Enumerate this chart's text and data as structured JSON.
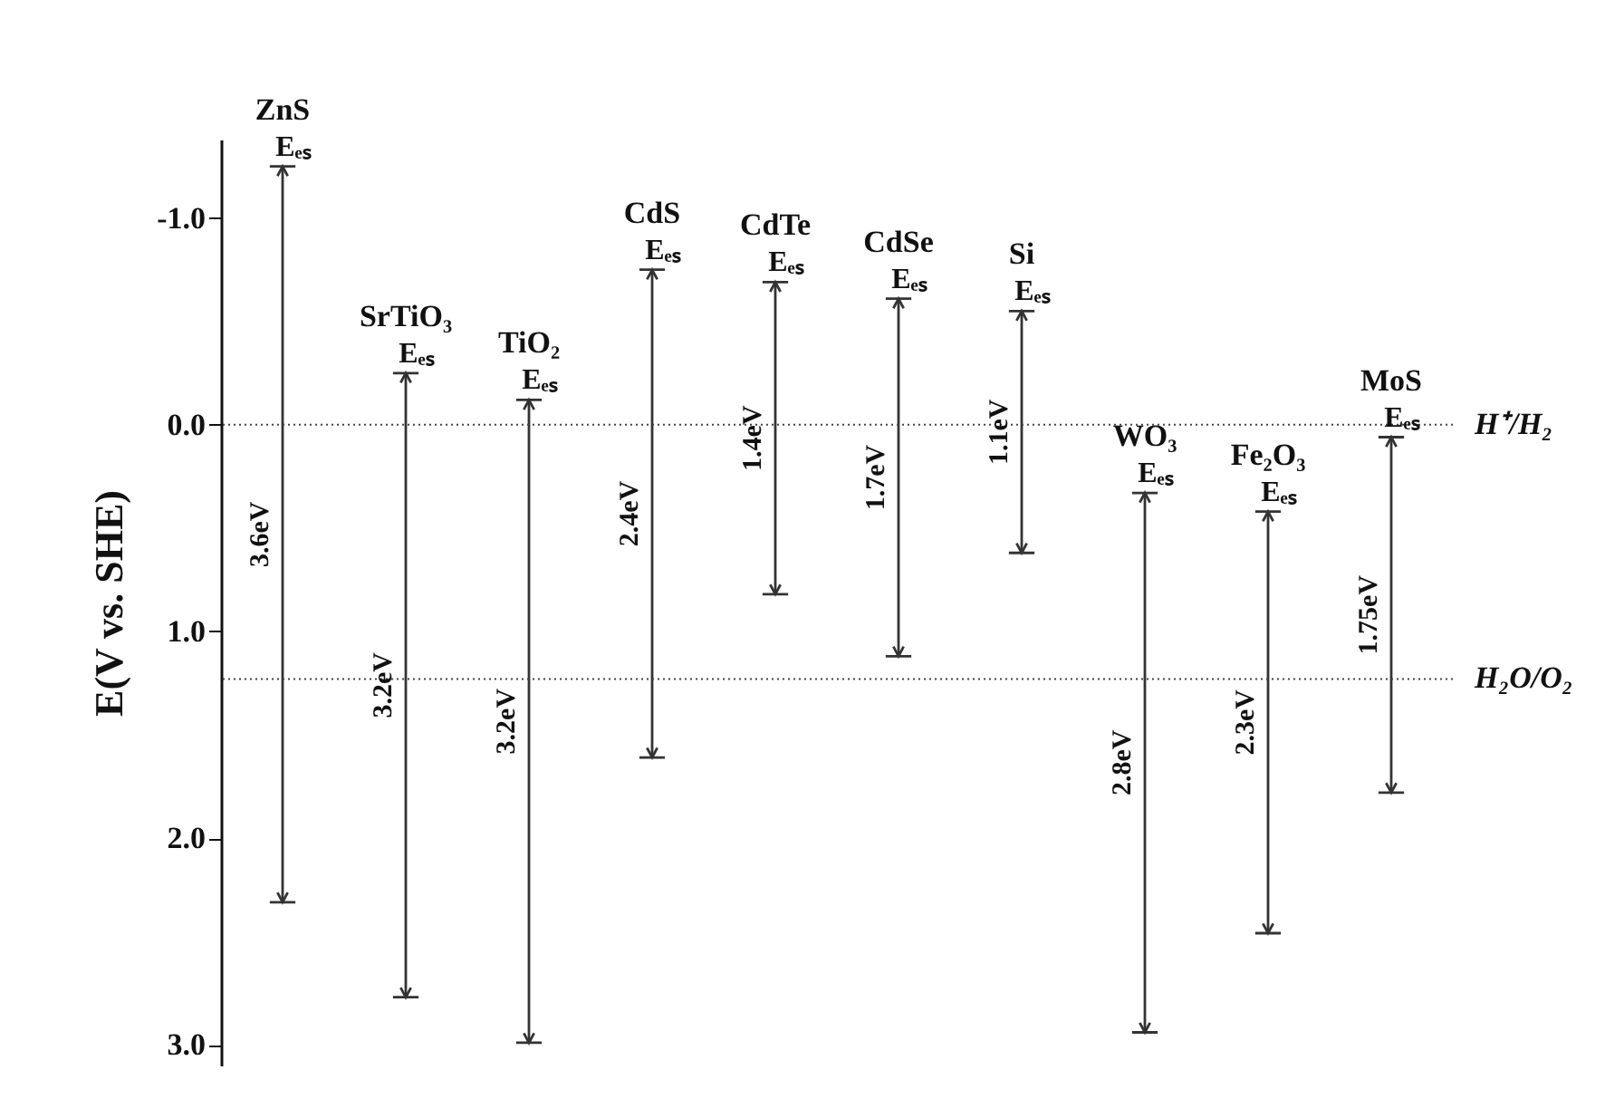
{
  "chart_data": {
    "type": "bar",
    "ylabel": "E(V vs. SHE)",
    "categories": [
      "ZnS",
      "SrTiO₃",
      "TiO₂",
      "CdS",
      "CdTe",
      "CdSe",
      "Si",
      "WO₃",
      "Fe₂O₃",
      "MoS"
    ],
    "base": [
      -1.25,
      -0.25,
      -0.12,
      -0.75,
      -0.69,
      -0.61,
      -0.55,
      0.33,
      0.42,
      0.06
    ],
    "values": [
      3.56,
      3.02,
      3.11,
      2.36,
      1.51,
      1.73,
      1.17,
      2.61,
      2.04,
      1.72
    ],
    "color": "#333333",
    "ylim": [
      3.1,
      -1.38
    ],
    "yticks": [
      {
        "value": -1,
        "label": "-1.0"
      },
      {
        "value": 0,
        "label": "0.0"
      },
      {
        "value": 1,
        "label": "1.0"
      },
      {
        "value": 2,
        "label": "2.0"
      },
      {
        "value": 3,
        "label": "3.0"
      }
    ],
    "tick_labels": "y",
    "ref_lines": [
      {
        "axis": "y",
        "value": 0,
        "label": "H⁺/H₂",
        "line_style": "dotted"
      },
      {
        "axis": "y",
        "value": 1.23,
        "label": "H₂O/O₂",
        "line_style": "dotted"
      }
    ],
    "annotations": [
      "Eₑₛ",
      "Eₑₛ",
      "Eₑₛ",
      "Eₑₛ",
      "Eₑₛ",
      "Eₑₛ",
      "Eₑₛ",
      "Eₑₛ",
      "Eₑₛ",
      "Eₑₛ",
      "3.6eV",
      "3.2eV",
      "3.2eV",
      "2.4eV",
      "1.4eV",
      "1.7eV",
      "1.1eV",
      "2.8eV",
      "2.3eV",
      "1.75eV"
    ]
  }
}
